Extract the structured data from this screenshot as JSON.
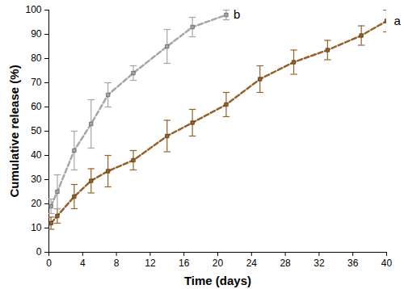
{
  "chart_data": {
    "type": "line",
    "x_label": "Time (days)",
    "y_label": "Cumulative release (%)",
    "xlim": [
      0,
      40
    ],
    "xticks": [
      0,
      4,
      8,
      12,
      16,
      20,
      24,
      28,
      32,
      36,
      40
    ],
    "ylim": [
      0,
      100
    ],
    "yticks": [
      0,
      10,
      20,
      30,
      40,
      50,
      60,
      70,
      80,
      90,
      100
    ],
    "series": [
      {
        "name": "a",
        "color": "#94622a",
        "marker": "square",
        "line_style": "dashed",
        "x": [
          0.25,
          1,
          3,
          5,
          7,
          10,
          14,
          17,
          21,
          25,
          29,
          33,
          37,
          40
        ],
        "values": [
          12,
          15,
          23,
          29.5,
          33.5,
          38,
          48,
          53.5,
          61,
          71.5,
          78.5,
          83.5,
          89.5,
          95.5
        ],
        "errors": [
          2.5,
          3,
          5,
          5,
          6.5,
          4,
          6.5,
          5.5,
          5,
          5.5,
          5,
          4,
          4,
          4.5
        ]
      },
      {
        "name": "b",
        "color": "#a6a6a6",
        "marker": "square",
        "line_style": "dashed",
        "x": [
          0.25,
          1,
          3,
          5,
          7,
          10,
          14,
          17,
          21
        ],
        "values": [
          19,
          25,
          42,
          53,
          65,
          74,
          85,
          93,
          98
        ],
        "errors": [
          3,
          7,
          8,
          10,
          5,
          3,
          7,
          4,
          2
        ]
      }
    ]
  }
}
